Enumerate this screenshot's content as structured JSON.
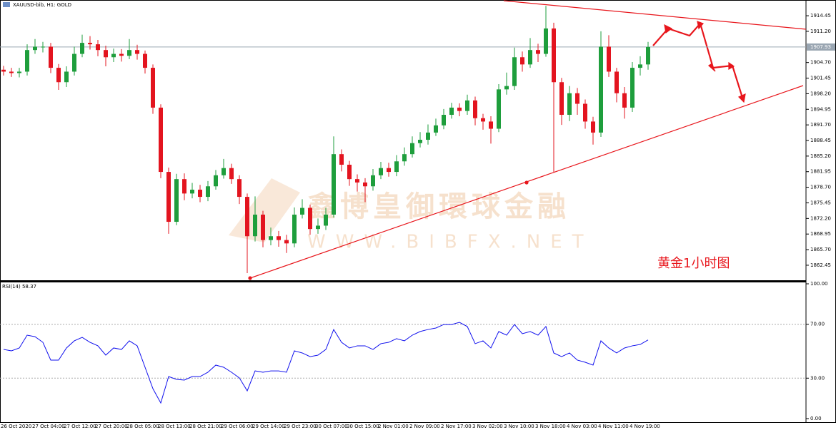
{
  "chart_data": {
    "type": "candlestick",
    "title": "XAUUSD-bib, H1:  GOLD",
    "categories": [
      "26 Oct 2020",
      null,
      null,
      null,
      "27 Oct 04:00",
      null,
      null,
      null,
      "27 Oct 12:00",
      null,
      null,
      null,
      "27 Oct 20:00",
      null,
      null,
      null,
      "28 Oct 05:00",
      null,
      null,
      null,
      "28 Oct 13:00",
      null,
      null,
      null,
      "28 Oct 21:00",
      null,
      null,
      null,
      "29 Oct 06:00",
      null,
      null,
      null,
      "29 Oct 14:00",
      null,
      null,
      null,
      "29 Oct 23:00",
      null,
      null,
      null,
      "30 Oct 07:00",
      null,
      null,
      null,
      "30 Oct 15:00",
      null,
      null,
      null,
      "2 Nov 01:00",
      null,
      null,
      null,
      "2 Nov 09:00",
      null,
      null,
      null,
      "2 Nov 17:00",
      null,
      null,
      null,
      "3 Nov 02:00",
      null,
      null,
      null,
      "3 Nov 10:00",
      null,
      null,
      null,
      "3 Nov 18:00",
      null,
      null,
      null,
      "4 Nov 03:00",
      null,
      null,
      null,
      "4 Nov 11:00",
      null,
      null,
      null,
      "4 Nov 19:00",
      null,
      null
    ],
    "open": [
      1903.2,
      1902.8,
      1902.5,
      1902.8,
      1907.3,
      1908.0,
      1908.0,
      1903.6,
      1900.6,
      1902.8,
      1906.5,
      1908.8,
      1908.5,
      1907.3,
      1905.8,
      1906.5,
      1906.1,
      1907.3,
      1906.5,
      1903.6,
      1895.3,
      1881.9,
      1871.5,
      1880.4,
      1877.4,
      1878.2,
      1876.7,
      1878.9,
      1881.2,
      1882.7,
      1880.4,
      1876.7,
      1868.5,
      1873.0,
      1867.7,
      1868.5,
      1867.7,
      1867.0,
      1873.0,
      1874.4,
      1870.0,
      1870.7,
      1873.0,
      1885.6,
      1883.4,
      1880.4,
      1879.7,
      1878.9,
      1881.2,
      1882.7,
      1881.9,
      1884.1,
      1885.6,
      1887.9,
      1888.6,
      1890.1,
      1891.6,
      1893.8,
      1895.3,
      1894.6,
      1896.8,
      1893.1,
      1892.4,
      1890.9,
      1899.1,
      1899.8,
      1905.8,
      1904.3,
      1907.3,
      1906.5,
      1911.8,
      1900.6,
      1893.8,
      1898.3,
      1896.1,
      1892.4,
      1890.1,
      1908.0,
      1902.8,
      1898.3,
      1895.3,
      1903.6,
      1904.3
    ],
    "high": [
      1904.0,
      1903.6,
      1903.6,
      1908.5,
      1909.6,
      1909.0,
      1908.8,
      1904.4,
      1903.9,
      1908.0,
      1910.5,
      1910.2,
      1909.4,
      1908.2,
      1907.6,
      1907.5,
      1909.6,
      1908.4,
      1907.2,
      1904.3,
      1896.0,
      1882.8,
      1881.5,
      1881.6,
      1879.6,
      1879.2,
      1880.0,
      1882.3,
      1884.6,
      1883.6,
      1881.2,
      1877.4,
      1876.8,
      1873.8,
      1870.3,
      1869.6,
      1868.8,
      1874.5,
      1876.2,
      1875.1,
      1872.2,
      1874.4,
      1889.3,
      1886.6,
      1884.2,
      1881.4,
      1880.6,
      1882.5,
      1884.0,
      1883.8,
      1885.4,
      1887.0,
      1889.3,
      1890.2,
      1891.8,
      1893.0,
      1895.0,
      1896.3,
      1896.2,
      1898.0,
      1897.6,
      1894.0,
      1893.5,
      1900.2,
      1902.6,
      1907.8,
      1907.0,
      1909.8,
      1908.6,
      1916.5,
      1913.0,
      1901.5,
      1899.8,
      1899.4,
      1897.0,
      1893.4,
      1911.2,
      1910.4,
      1903.6,
      1899.6,
      1904.8,
      1906.0,
      1909.0
    ],
    "low": [
      1902.0,
      1901.7,
      1901.6,
      1902.0,
      1906.5,
      1906.8,
      1902.5,
      1899.0,
      1899.6,
      1902.0,
      1905.8,
      1907.4,
      1906.0,
      1903.9,
      1904.8,
      1904.9,
      1905.4,
      1905.3,
      1902.4,
      1894.0,
      1880.6,
      1869.0,
      1870.8,
      1876.0,
      1876.4,
      1875.6,
      1875.8,
      1878.2,
      1880.5,
      1879.4,
      1875.2,
      1860.8,
      1867.4,
      1866.2,
      1866.6,
      1866.3,
      1865.0,
      1866.2,
      1872.2,
      1868.8,
      1869.0,
      1869.8,
      1872.4,
      1882.0,
      1879.0,
      1877.8,
      1875.6,
      1878.0,
      1880.4,
      1880.9,
      1881.0,
      1883.2,
      1884.9,
      1887.0,
      1887.6,
      1889.4,
      1890.8,
      1893.0,
      1893.5,
      1893.8,
      1891.6,
      1890.7,
      1887.8,
      1890.2,
      1898.0,
      1899.0,
      1902.8,
      1903.6,
      1904.8,
      1905.9,
      1881.9,
      1891.7,
      1892.5,
      1893.8,
      1890.9,
      1887.6,
      1889.2,
      1901.7,
      1896.4,
      1893.0,
      1894.4,
      1902.0,
      1903.2
    ],
    "close": [
      1902.8,
      1902.5,
      1902.8,
      1907.3,
      1908.0,
      1908.0,
      1903.6,
      1900.6,
      1902.8,
      1906.5,
      1908.8,
      1908.5,
      1907.3,
      1905.8,
      1906.5,
      1906.1,
      1907.3,
      1906.5,
      1903.6,
      1895.3,
      1881.9,
      1871.5,
      1880.4,
      1877.4,
      1878.2,
      1876.7,
      1878.9,
      1881.2,
      1882.7,
      1880.4,
      1876.7,
      1868.5,
      1873.0,
      1867.7,
      1868.5,
      1867.7,
      1867.0,
      1873.0,
      1874.4,
      1870.0,
      1870.7,
      1873.0,
      1885.6,
      1883.4,
      1880.4,
      1879.7,
      1878.9,
      1881.2,
      1882.7,
      1881.9,
      1884.1,
      1885.6,
      1887.9,
      1888.6,
      1890.1,
      1891.6,
      1893.8,
      1895.3,
      1894.6,
      1896.8,
      1893.1,
      1892.4,
      1890.9,
      1899.1,
      1899.8,
      1905.8,
      1904.3,
      1907.3,
      1906.5,
      1911.8,
      1900.6,
      1893.8,
      1898.3,
      1896.1,
      1892.4,
      1890.1,
      1908.0,
      1902.8,
      1898.3,
      1895.3,
      1903.6,
      1904.3,
      1907.93
    ],
    "up_color": "#1e9e3c",
    "down_color": "#e3141f",
    "ylim": [
      1859.32,
      1917.73
    ],
    "yticks": [
      1914.45,
      {
        "value": 1911.2,
        "label": "1911.20"
      },
      {
        "value": 1904.7,
        "label": "1904.70"
      },
      1901.45,
      {
        "value": 1898.2,
        "label": "1898.20"
      },
      1894.95,
      {
        "value": 1891.7,
        "label": "1891.70"
      },
      1888.45,
      {
        "value": 1885.2,
        "label": "1885.20"
      },
      1881.95,
      {
        "value": 1878.7,
        "label": "1878.70"
      },
      1875.45,
      {
        "value": 1872.2,
        "label": "1872.20"
      },
      1868.95,
      {
        "value": 1865.7,
        "label": "1865.70"
      },
      1862.45
    ],
    "current_price": 1907.93,
    "indicator": {
      "name": "RSI(14) 58.37",
      "color": "#1010ee",
      "values": [
        51.3,
        50.3,
        52.4,
        61.9,
        60.8,
        56.6,
        43.4,
        43.4,
        52.4,
        57.7,
        60.3,
        56.6,
        54.0,
        47.1,
        52.4,
        51.3,
        57.7,
        54.0,
        38.1,
        22.2,
        11.6,
        31.2,
        29.1,
        28.6,
        31.2,
        31.2,
        34.4,
        39.7,
        38.1,
        34.4,
        30.2,
        20.6,
        35.4,
        34.4,
        35.4,
        35.4,
        34.4,
        50.3,
        48.7,
        46.0,
        47.1,
        51.3,
        66.1,
        56.6,
        52.4,
        54.0,
        54.0,
        51.3,
        55.6,
        56.6,
        59.3,
        57.7,
        61.9,
        64.6,
        66.1,
        67.2,
        69.8,
        69.8,
        71.4,
        68.3,
        55.6,
        57.7,
        52.4,
        64.6,
        61.9,
        69.8,
        63.0,
        64.6,
        61.9,
        68.3,
        48.7,
        46.0,
        48.7,
        43.4,
        41.8,
        39.7,
        57.7,
        52.4,
        48.7,
        52.4,
        54.0,
        55.0,
        58.37
      ],
      "ylim": [
        0,
        100
      ],
      "yticks": [
        {
          "value": 100,
          "label": "100.00"
        },
        {
          "value": 70,
          "label": "70.00"
        },
        {
          "value": 30,
          "label": "30.00"
        },
        {
          "value": 0,
          "label": "0.00"
        }
      ],
      "levels": [
        70,
        30
      ]
    },
    "watermark": "鑫博皇御環球金融",
    "watermark_url": "WWW.BIBFX.NET",
    "note": "黄金1小时图"
  }
}
